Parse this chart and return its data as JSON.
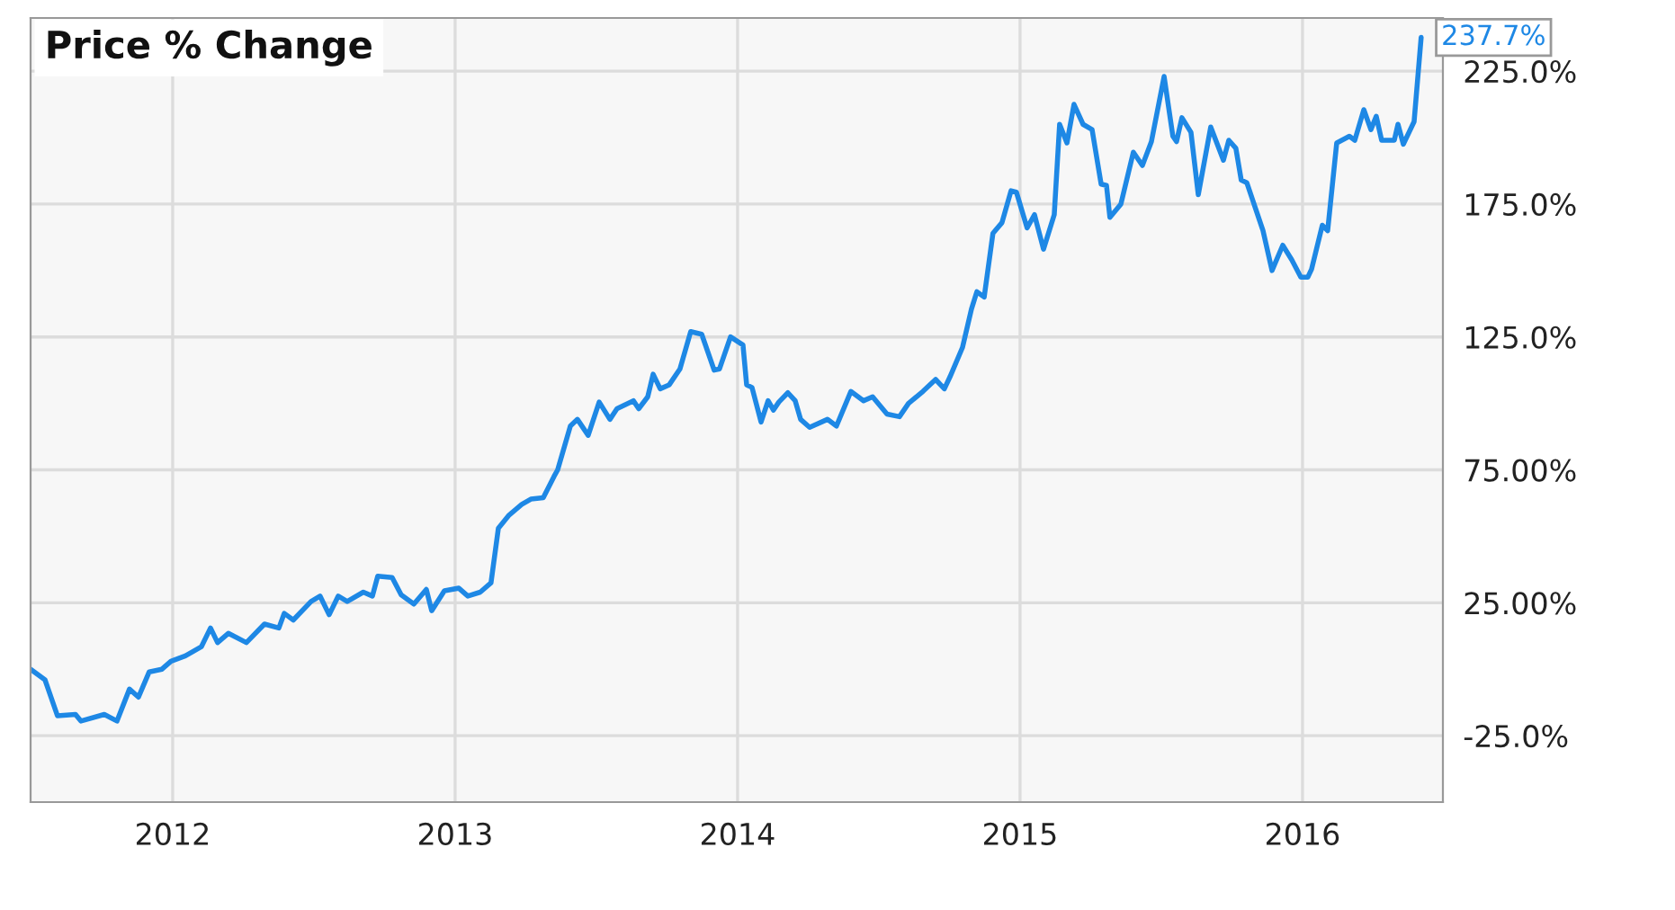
{
  "chart_data": {
    "type": "line",
    "title": "Price % Change",
    "x": [
      2011.497,
      2011.548,
      2011.592,
      2011.656,
      2011.675,
      2011.758,
      2011.803,
      2011.847,
      2011.879,
      2011.917,
      2011.962,
      2011.994,
      2012.045,
      2012.102,
      2012.134,
      2012.159,
      2012.197,
      2012.261,
      2012.325,
      2012.376,
      2012.395,
      2012.427,
      2012.49,
      2012.522,
      2012.554,
      2012.586,
      2012.618,
      2012.675,
      2012.707,
      2012.726,
      2012.777,
      2012.809,
      2012.854,
      2012.898,
      2012.917,
      2012.962,
      2013.013,
      2013.045,
      2013.089,
      2013.127,
      2013.153,
      2013.191,
      2013.236,
      2013.268,
      2013.312,
      2013.35,
      2013.363,
      2013.408,
      2013.433,
      2013.471,
      2013.51,
      2013.548,
      2013.573,
      2013.631,
      2013.65,
      2013.682,
      2013.701,
      2013.726,
      2013.758,
      2013.796,
      2013.834,
      2013.873,
      2013.917,
      2013.936,
      2013.975,
      2014.019,
      2014.032,
      2014.051,
      2014.083,
      2014.108,
      2014.127,
      2014.146,
      2014.178,
      2014.204,
      2014.223,
      2014.255,
      2014.318,
      2014.35,
      2014.401,
      2014.446,
      2014.478,
      2014.529,
      2014.573,
      2014.605,
      2014.656,
      2014.701,
      2014.732,
      2014.752,
      2014.796,
      2014.828,
      2014.847,
      2014.873,
      2014.904,
      2014.936,
      2014.968,
      2014.987,
      2015.025,
      2015.051,
      2015.083,
      2015.121,
      2015.14,
      2015.166,
      2015.191,
      2015.223,
      2015.255,
      2015.287,
      2015.306,
      2015.318,
      2015.357,
      2015.401,
      2015.433,
      2015.465,
      2015.51,
      2015.541,
      2015.554,
      2015.573,
      2015.605,
      2015.631,
      2015.675,
      2015.72,
      2015.739,
      2015.764,
      2015.783,
      2015.803,
      2015.86,
      2015.892,
      2015.93,
      2015.962,
      2015.994,
      2016.019,
      2016.032,
      2016.07,
      2016.089,
      2016.121,
      2016.166,
      2016.185,
      2016.217,
      2016.242,
      2016.261,
      2016.28,
      2016.325,
      2016.338,
      2016.357,
      2016.395,
      2016.42
    ],
    "series": [
      {
        "color": "#1e88e5",
        "values": [
          0,
          -4,
          -17.5,
          -17,
          -19.5,
          -17,
          -19.5,
          -7.5,
          -10.5,
          -1,
          0,
          3,
          5,
          8.5,
          15.5,
          10,
          13.5,
          10,
          17,
          15.5,
          21,
          18.5,
          25.5,
          27.5,
          20.5,
          27.5,
          25.5,
          29,
          27.5,
          35,
          34.5,
          28,
          24.5,
          30,
          22,
          29.5,
          30.5,
          27.5,
          29,
          32.5,
          53,
          58,
          62,
          64,
          64.5,
          72.5,
          75,
          91.5,
          94,
          88,
          100.5,
          94,
          98,
          101,
          98,
          102.5,
          111,
          105.5,
          107,
          113,
          127,
          126,
          112.5,
          113,
          125,
          122,
          107,
          106,
          93,
          101,
          97.5,
          100.5,
          104,
          101,
          94,
          91,
          94,
          91.5,
          104.5,
          101,
          102.5,
          96,
          95,
          100,
          104.5,
          109,
          105.5,
          110,
          121,
          135.5,
          142,
          140,
          164,
          168,
          180,
          179.5,
          166,
          171,
          158,
          171,
          205,
          198,
          212.5,
          205,
          203,
          182.5,
          182,
          170,
          175,
          194.5,
          189.5,
          198.5,
          223,
          200.5,
          198.5,
          207.5,
          202,
          178.5,
          204,
          191.5,
          199,
          196,
          184,
          183,
          165,
          150,
          159.5,
          154,
          147.5,
          147.5,
          150.5,
          167,
          165,
          198,
          200.5,
          199,
          210.5,
          203,
          208,
          199,
          199,
          205,
          197.5,
          206,
          237.7
        ]
      }
    ],
    "xlim": [
      2011.497,
      2016.497
    ],
    "ylim": [
      -50,
      245
    ],
    "xticks": [
      2012,
      2013,
      2014,
      2015,
      2016
    ],
    "yticks": [
      {
        "value": -25,
        "label": "-25.0%"
      },
      {
        "value": 25,
        "label": "25.00%"
      },
      {
        "value": 75,
        "label": "75.00%"
      },
      {
        "value": 125,
        "label": "125.0%"
      },
      {
        "value": 175,
        "label": "175.0%"
      },
      {
        "value": 225,
        "label": "225.0%"
      }
    ],
    "annotations": [
      {
        "text": "237.7%",
        "x": 2016.42,
        "y": 237.7
      }
    ],
    "grid": true,
    "marker": "none",
    "line_style": "solid"
  }
}
